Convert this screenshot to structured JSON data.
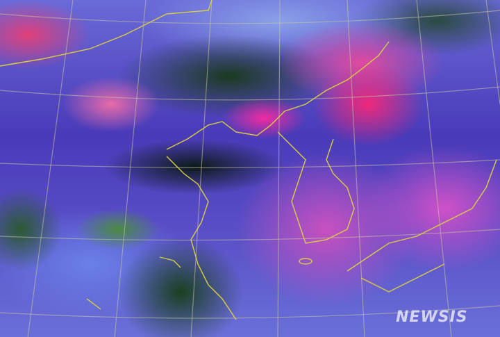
{
  "image": {
    "watermark": "NEWSIS",
    "colors": {
      "cloud_pink": "#f02aa0",
      "cloud_blue": "#6a70d8",
      "land_green": "#1a3a20",
      "coastline": "#d8d040",
      "grid": "#c8c8a0"
    }
  }
}
